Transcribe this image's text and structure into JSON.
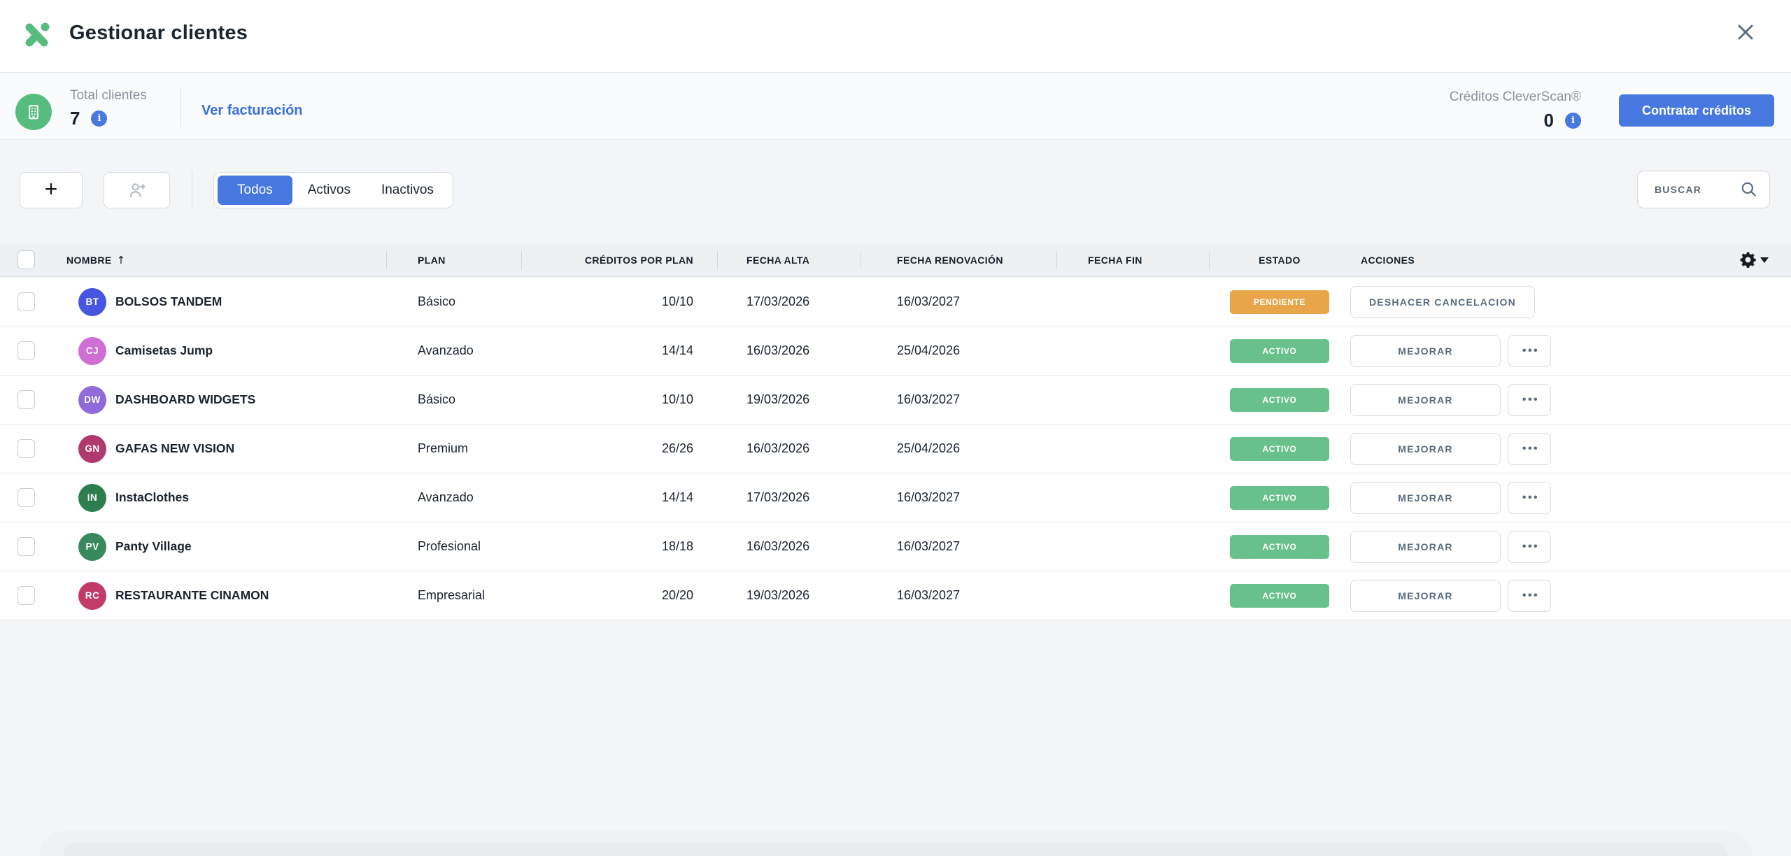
{
  "app": {
    "title": "Gestionar clientes"
  },
  "stats": {
    "total_label": "Total clientes",
    "total_value": "7",
    "billing_link": "Ver facturación",
    "credits_label": "Créditos CleverScan®",
    "credits_value": "0",
    "buy_credits_button": "Contratar créditos",
    "info_glyph": "i"
  },
  "toolbar": {
    "add_label": "+",
    "tabs": [
      {
        "label": "Todos",
        "active": true
      },
      {
        "label": "Activos",
        "active": false
      },
      {
        "label": "Inactivos",
        "active": false
      }
    ],
    "search_placeholder": "BUSCAR"
  },
  "table": {
    "columns": [
      {
        "label": "NOMBRE",
        "arrow": "↑"
      },
      {
        "label": "PLAN"
      },
      {
        "label": "CRÉDITOS POR PLAN"
      },
      {
        "label": "FECHA ALTA"
      },
      {
        "label": "FECHA RENOVACIÓN"
      },
      {
        "label": "FECHA FIN"
      },
      {
        "label": "ESTADO"
      },
      {
        "label": "ACCIONES"
      }
    ],
    "upgrade_label": "MEJORAR",
    "more_label": "•••",
    "rows": [
      {
        "initials": "BT",
        "avatar_color": "#4656df",
        "name": "BOLSOS TANDEM",
        "plan": "Básico",
        "credits": "10/10",
        "fecha_alta": "17/03/2026",
        "fecha_renovacion": "16/03/2027",
        "fecha_fin": "",
        "status": {
          "label": "PENDIENTE",
          "color": "#e9a54a"
        },
        "actions": {
          "primary": "DESHACER CANCELACION",
          "more": false
        }
      },
      {
        "initials": "CJ",
        "avatar_color": "#cf6ed3",
        "name": "Camisetas Jump",
        "plan": "Avanzado",
        "credits": "14/14",
        "fecha_alta": "16/03/2026",
        "fecha_renovacion": "25/04/2026",
        "fecha_fin": "",
        "status": {
          "label": "ACTIVO",
          "color": "#68c08b"
        },
        "actions": {
          "primary": "MEJORAR",
          "more": true
        }
      },
      {
        "initials": "DW",
        "avatar_color": "#8f6ad8",
        "name": "DASHBOARD WIDGETS",
        "plan": "Básico",
        "credits": "10/10",
        "fecha_alta": "19/03/2026",
        "fecha_renovacion": "16/03/2027",
        "fecha_fin": "",
        "status": {
          "label": "ACTIVO",
          "color": "#68c08b"
        },
        "actions": {
          "primary": "MEJORAR",
          "more": true
        }
      },
      {
        "initials": "GN",
        "avatar_color": "#b03a6d",
        "name": "GAFAS NEW VISION",
        "plan": "Premium",
        "credits": "26/26",
        "fecha_alta": "16/03/2026",
        "fecha_renovacion": "25/04/2026",
        "fecha_fin": "",
        "status": {
          "label": "ACTIVO",
          "color": "#68c08b"
        },
        "actions": {
          "primary": "MEJORAR",
          "more": true
        }
      },
      {
        "initials": "IN",
        "avatar_color": "#2e7d4e",
        "name": "InstaClothes",
        "plan": "Avanzado",
        "credits": "14/14",
        "fecha_alta": "17/03/2026",
        "fecha_renovacion": "16/03/2027",
        "fecha_fin": "",
        "status": {
          "label": "ACTIVO",
          "color": "#68c08b"
        },
        "actions": {
          "primary": "MEJORAR",
          "more": true
        }
      },
      {
        "initials": "PV",
        "avatar_color": "#388a5e",
        "name": "Panty Village",
        "plan": "Profesional",
        "credits": "18/18",
        "fecha_alta": "16/03/2026",
        "fecha_renovacion": "16/03/2027",
        "fecha_fin": "",
        "status": {
          "label": "ACTIVO",
          "color": "#68c08b"
        },
        "actions": {
          "primary": "MEJORAR",
          "more": true
        }
      },
      {
        "initials": "RC",
        "avatar_color": "#c23b66",
        "name": "RESTAURANTE CINAMON",
        "plan": "Empresarial",
        "credits": "20/20",
        "fecha_alta": "19/03/2026",
        "fecha_renovacion": "16/03/2027",
        "fecha_fin": "",
        "status": {
          "label": "ACTIVO",
          "color": "#68c08b"
        },
        "actions": {
          "primary": "MEJORAR",
          "more": true
        }
      }
    ]
  },
  "colors": {
    "accent_blue": "#4678e0",
    "link_blue": "#3b6fe0",
    "brand_green": "#57bd7f",
    "status_active_green": "#68c08b",
    "status_pending_orange": "#e9a54a",
    "header_row_bg": "#eef0f1",
    "page_bg": "#f4f5f7"
  }
}
